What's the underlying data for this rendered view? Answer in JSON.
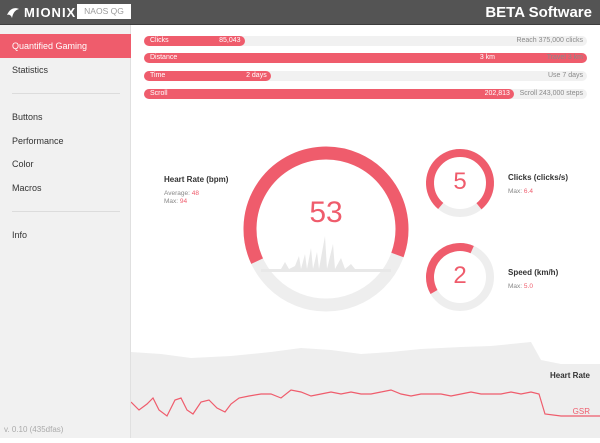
{
  "header": {
    "brand": "MIONIX",
    "device": "NAOS QG",
    "title": "BETA Software"
  },
  "sidebar": {
    "items": [
      {
        "label": "Quantified Gaming"
      },
      {
        "label": "Statistics"
      },
      {
        "label": "Buttons"
      },
      {
        "label": "Performance"
      },
      {
        "label": "Color"
      },
      {
        "label": "Macros"
      },
      {
        "label": "Info"
      }
    ],
    "version": "v. 0.10 (435dfas)"
  },
  "progress": [
    {
      "label": "Clicks",
      "value": "85,043",
      "goal": "Reach 375,000 clicks",
      "fraction": 0.227
    },
    {
      "label": "Distance",
      "value": "3 km",
      "goal": "Travel 3 km",
      "fraction": 1.0
    },
    {
      "label": "Time",
      "value": "2 days",
      "goal": "Use 7 days",
      "fraction": 0.286
    },
    {
      "label": "Scroll",
      "value": "202,813",
      "goal": "Scroll 243,000 steps",
      "fraction": 0.835
    }
  ],
  "heart_rate": {
    "title": "Heart Rate (bpm)",
    "avg_label": "Average:",
    "avg_value": "48",
    "max_label": "Max:",
    "max_value": "94",
    "current": "53",
    "fraction": 0.5
  },
  "clicks": {
    "title": "Clicks (clicks/s)",
    "max_label": "Max:",
    "max_value": "6.4",
    "current": "5",
    "fraction": 0.78
  },
  "speed": {
    "title": "Speed (km/h)",
    "max_label": "Max:",
    "max_value": "5.0",
    "current": "2",
    "fraction": 0.4
  },
  "graph": {
    "heart_rate_label": "Heart Rate",
    "gsr_label": "GSR"
  },
  "colors": {
    "accent": "#ef5c6c",
    "track": "#f1f1f1",
    "header": "#545454"
  }
}
